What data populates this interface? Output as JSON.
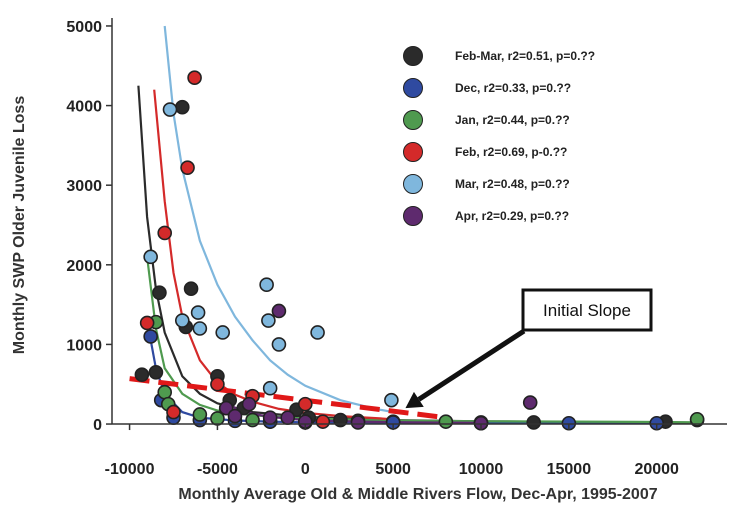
{
  "chart_data": {
    "type": "scatter",
    "title": "",
    "xlabel": "Monthly Average Old & Middle Rivers Flow, Dec-Apr, 1995-2007",
    "ylabel": "Monthly SWP Older Juvenile Loss",
    "xlim": [
      -11000,
      24000
    ],
    "ylim": [
      -100,
      5100
    ],
    "x_ticks": [
      -10000,
      -5000,
      0,
      5000,
      10000,
      15000,
      20000
    ],
    "x_tick_labels": [
      "-10000",
      "-5000",
      "0",
      "5000",
      "10000",
      "15000",
      "20000"
    ],
    "y_ticks": [
      0,
      1000,
      2000,
      3000,
      4000,
      5000
    ],
    "y_tick_labels": [
      "0",
      "1000",
      "2000",
      "3000",
      "4000",
      "5000"
    ],
    "legend_position": "top-right",
    "grid": false,
    "series": [
      {
        "name": "Feb-Mar, r2=0.51, p=0.??",
        "color": "#2b2b2b",
        "points": [
          [
            -9300,
            620
          ],
          [
            -8500,
            650
          ],
          [
            -8300,
            1650
          ],
          [
            -7000,
            3980
          ],
          [
            -6500,
            1700
          ],
          [
            -6800,
            1220
          ],
          [
            -5000,
            600
          ],
          [
            -4300,
            300
          ],
          [
            -3500,
            200
          ],
          [
            -2000,
            30
          ],
          [
            -500,
            180
          ],
          [
            200,
            80
          ],
          [
            2000,
            50
          ],
          [
            5000,
            30
          ],
          [
            10000,
            20
          ],
          [
            13000,
            20
          ],
          [
            20500,
            30
          ],
          [
            22300,
            50
          ]
        ],
        "curve": [
          [
            -9500,
            4250
          ],
          [
            -9000,
            2600
          ],
          [
            -8500,
            1700
          ],
          [
            -8000,
            1150
          ],
          [
            -7000,
            600
          ],
          [
            -6000,
            380
          ],
          [
            -5000,
            260
          ],
          [
            -3000,
            150
          ],
          [
            0,
            90
          ],
          [
            5000,
            50
          ],
          [
            10000,
            35
          ],
          [
            15000,
            25
          ],
          [
            20000,
            20
          ],
          [
            22300,
            18
          ]
        ]
      },
      {
        "name": "Dec, r2=0.33, p=0.??",
        "color": "#2f4aa0",
        "points": [
          [
            -8800,
            1100
          ],
          [
            -8200,
            300
          ],
          [
            -7500,
            80
          ],
          [
            -6000,
            50
          ],
          [
            -4000,
            40
          ],
          [
            -2000,
            30
          ],
          [
            0,
            20
          ],
          [
            5000,
            20
          ],
          [
            10000,
            10
          ],
          [
            15000,
            10
          ],
          [
            20000,
            10
          ]
        ],
        "curve": [
          [
            -9000,
            1300
          ],
          [
            -8500,
            700
          ],
          [
            -8000,
            380
          ],
          [
            -7000,
            150
          ],
          [
            -6000,
            80
          ],
          [
            -4000,
            45
          ],
          [
            -2000,
            30
          ],
          [
            0,
            22
          ],
          [
            5000,
            15
          ],
          [
            10000,
            12
          ],
          [
            15000,
            10
          ],
          [
            20000,
            10
          ]
        ]
      },
      {
        "name": "Jan, r2=0.44, p=0.??",
        "color": "#4f9a4f",
        "points": [
          [
            -8500,
            1280
          ],
          [
            -8000,
            400
          ],
          [
            -7800,
            250
          ],
          [
            -6000,
            120
          ],
          [
            -5000,
            70
          ],
          [
            -3000,
            50
          ],
          [
            0,
            30
          ],
          [
            3000,
            40
          ],
          [
            8000,
            30
          ],
          [
            22300,
            60
          ]
        ],
        "curve": [
          [
            -9000,
            2100
          ],
          [
            -8500,
            1200
          ],
          [
            -8000,
            700
          ],
          [
            -7000,
            380
          ],
          [
            -6000,
            240
          ],
          [
            -5000,
            170
          ],
          [
            -3000,
            110
          ],
          [
            0,
            70
          ],
          [
            5000,
            45
          ],
          [
            10000,
            35
          ],
          [
            15000,
            30
          ],
          [
            20000,
            25
          ],
          [
            22300,
            22
          ]
        ]
      },
      {
        "name": "Feb, r2=0.69, p-0.??",
        "color": "#d42a2a",
        "points": [
          [
            -6300,
            4350
          ],
          [
            -6700,
            3220
          ],
          [
            -8000,
            2400
          ],
          [
            -9000,
            1270
          ],
          [
            -7500,
            150
          ],
          [
            -5000,
            500
          ],
          [
            -4500,
            200
          ],
          [
            -3000,
            350
          ],
          [
            0,
            250
          ],
          [
            1000,
            30
          ]
        ],
        "curve": [
          [
            -8600,
            4200
          ],
          [
            -8000,
            2800
          ],
          [
            -7500,
            1900
          ],
          [
            -7000,
            1350
          ],
          [
            -6000,
            800
          ],
          [
            -5000,
            520
          ],
          [
            -4000,
            370
          ],
          [
            -3000,
            280
          ],
          [
            -1500,
            190
          ],
          [
            0,
            140
          ],
          [
            2000,
            100
          ],
          [
            4000,
            75
          ],
          [
            5000,
            60
          ]
        ]
      },
      {
        "name": "Mar, r2=0.48, p=0.??",
        "color": "#7fb7dd",
        "points": [
          [
            -8800,
            2100
          ],
          [
            -7700,
            3950
          ],
          [
            -6100,
            1400
          ],
          [
            -7000,
            1300
          ],
          [
            -4700,
            1150
          ],
          [
            -2200,
            1750
          ],
          [
            -2100,
            1300
          ],
          [
            -1500,
            1000
          ],
          [
            700,
            1150
          ],
          [
            -2000,
            450
          ],
          [
            4900,
            300
          ],
          [
            -6000,
            1200
          ]
        ],
        "curve": [
          [
            -8000,
            5000
          ],
          [
            -7500,
            3900
          ],
          [
            -7000,
            3200
          ],
          [
            -6000,
            2300
          ],
          [
            -5000,
            1750
          ],
          [
            -4000,
            1350
          ],
          [
            -3000,
            1050
          ],
          [
            -2000,
            800
          ],
          [
            -1000,
            620
          ],
          [
            0,
            480
          ],
          [
            2000,
            300
          ],
          [
            4000,
            190
          ],
          [
            5000,
            150
          ]
        ]
      },
      {
        "name": "Apr, r2=0.29, p=0.??",
        "color": "#5e2a6e",
        "points": [
          [
            -4500,
            200
          ],
          [
            -4000,
            100
          ],
          [
            -3200,
            250
          ],
          [
            -2000,
            80
          ],
          [
            -1500,
            1420
          ],
          [
            -1000,
            80
          ],
          [
            0,
            30
          ],
          [
            3000,
            20
          ],
          [
            12800,
            270
          ],
          [
            10000,
            10
          ]
        ],
        "curve": [
          [
            -4500,
            300
          ],
          [
            -4000,
            200
          ],
          [
            -3000,
            130
          ],
          [
            -2000,
            90
          ],
          [
            0,
            50
          ],
          [
            3000,
            30
          ],
          [
            6000,
            20
          ],
          [
            10000,
            15
          ]
        ]
      }
    ],
    "annotations": [
      {
        "text": "Initial Slope",
        "target_x": 5700,
        "target_y": 200
      }
    ],
    "trend_line": {
      "label": "Initial Slope",
      "color": "#e01818",
      "points": [
        [
          -10000,
          570
        ],
        [
          8000,
          80
        ]
      ]
    }
  }
}
